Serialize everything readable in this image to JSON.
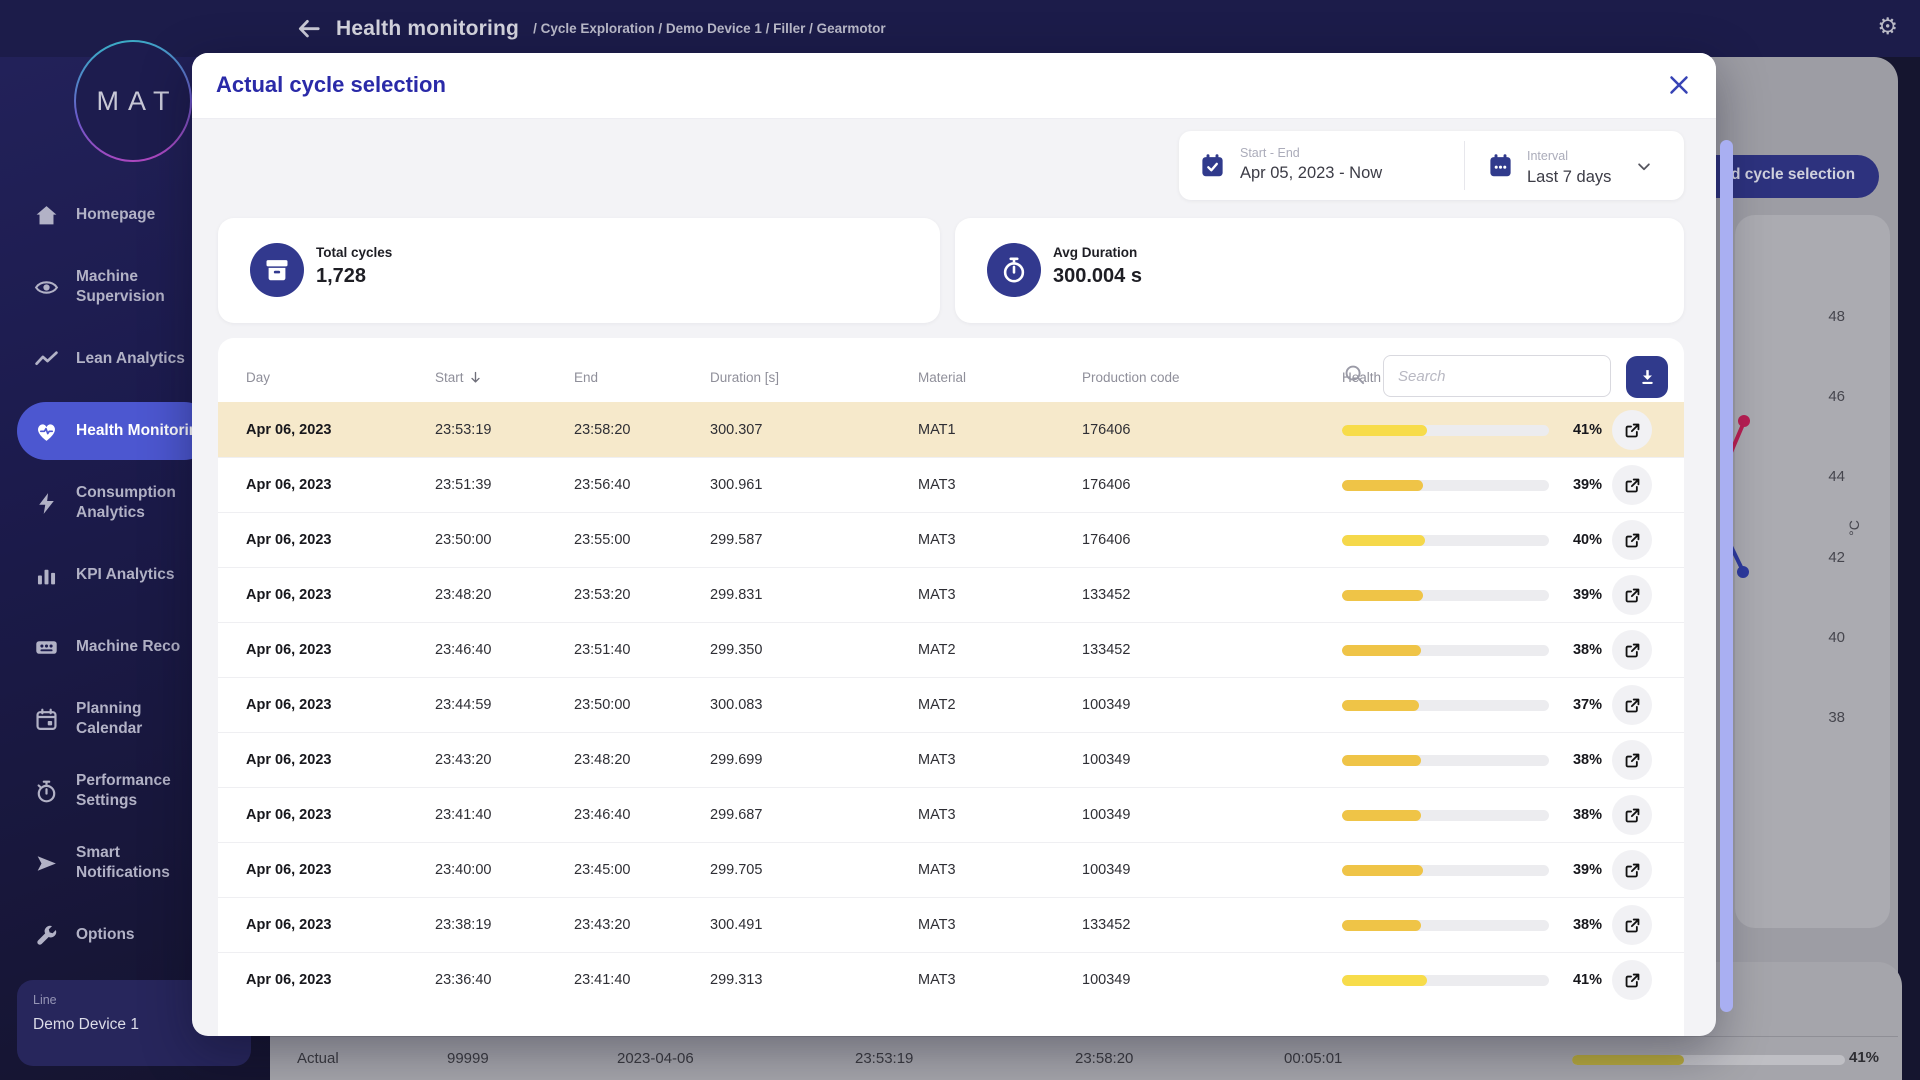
{
  "header": {
    "title": "Health monitoring",
    "breadcrumb": "/ Cycle Exploration  / Demo Device 1  / Filler  / Gearmotor",
    "gear_icon": "⚙"
  },
  "logo": {
    "text": "MAT"
  },
  "sidebar": {
    "items": [
      {
        "label": "Homepage",
        "icon": "home",
        "active": false
      },
      {
        "label": "Machine\nSupervision",
        "icon": "eye",
        "active": false
      },
      {
        "label": "Lean Analytics",
        "icon": "trend",
        "active": false
      },
      {
        "label": "Health Monitoring",
        "icon": "heart",
        "active": true
      },
      {
        "label": "Consumption\nAnalytics",
        "icon": "bolt",
        "active": false
      },
      {
        "label": "KPI Analytics",
        "icon": "bars",
        "active": false
      },
      {
        "label": "Machine Reco",
        "icon": "cassette",
        "active": false
      },
      {
        "label": "Planning\nCalendar",
        "icon": "calendar",
        "active": false
      },
      {
        "label": "Performance\nSettings",
        "icon": "stopwatch",
        "active": false
      },
      {
        "label": "Smart\nNotifications",
        "icon": "send",
        "active": false
      },
      {
        "label": "Options",
        "icon": "wrench",
        "active": false
      }
    ],
    "line_panel": {
      "label": "Line",
      "value": "Demo Device 1"
    }
  },
  "background": {
    "guided_button_label": "d cycle selection",
    "axis_ticks": [
      "48",
      "46",
      "44",
      "42",
      "40",
      "38"
    ],
    "axis_unit": "°C",
    "bottom_row": {
      "name": "Actual",
      "count": "99999",
      "date": "2023-04-06",
      "start": "23:53:19",
      "end": "23:58:20",
      "duration": "00:05:01",
      "health": 41,
      "health_label": "41%",
      "bar_color": "#b5a83e"
    }
  },
  "modal": {
    "title": "Actual cycle selection",
    "date_range": {
      "label": "Start - End",
      "value": "Apr 05, 2023 - Now"
    },
    "interval": {
      "label": "Interval",
      "value": "Last 7 days"
    },
    "stats": [
      {
        "label": "Total cycles",
        "value": "1,728",
        "icon": "archive"
      },
      {
        "label": "Avg Duration",
        "value": "300.004 s",
        "icon": "timer"
      }
    ],
    "search": {
      "placeholder": "Search"
    },
    "table": {
      "col_day": "Day",
      "col_start": "Start",
      "col_end": "End",
      "col_duration": "Duration [s]",
      "col_material": "Material",
      "col_code": "Production code",
      "col_health": "Health",
      "rows": [
        {
          "day": "Apr 06, 2023",
          "start": "23:53:19",
          "end": "23:58:20",
          "duration": "300.307",
          "material": "MAT1",
          "code": "176406",
          "health": 41,
          "health_label": "41%",
          "bar_color": "#f7dc4a",
          "highlight": true
        },
        {
          "day": "Apr 06, 2023",
          "start": "23:51:39",
          "end": "23:56:40",
          "duration": "300.961",
          "material": "MAT3",
          "code": "176406",
          "health": 39,
          "health_label": "39%",
          "bar_color": "#efc447",
          "highlight": false
        },
        {
          "day": "Apr 06, 2023",
          "start": "23:50:00",
          "end": "23:55:00",
          "duration": "299.587",
          "material": "MAT3",
          "code": "176406",
          "health": 40,
          "health_label": "40%",
          "bar_color": "#f5d84a",
          "highlight": false
        },
        {
          "day": "Apr 06, 2023",
          "start": "23:48:20",
          "end": "23:53:20",
          "duration": "299.831",
          "material": "MAT3",
          "code": "133452",
          "health": 39,
          "health_label": "39%",
          "bar_color": "#efc447",
          "highlight": false
        },
        {
          "day": "Apr 06, 2023",
          "start": "23:46:40",
          "end": "23:51:40",
          "duration": "299.350",
          "material": "MAT2",
          "code": "133452",
          "health": 38,
          "health_label": "38%",
          "bar_color": "#efc447",
          "highlight": false
        },
        {
          "day": "Apr 06, 2023",
          "start": "23:44:59",
          "end": "23:50:00",
          "duration": "300.083",
          "material": "MAT2",
          "code": "100349",
          "health": 37,
          "health_label": "37%",
          "bar_color": "#efc447",
          "highlight": false
        },
        {
          "day": "Apr 06, 2023",
          "start": "23:43:20",
          "end": "23:48:20",
          "duration": "299.699",
          "material": "MAT3",
          "code": "100349",
          "health": 38,
          "health_label": "38%",
          "bar_color": "#efc447",
          "highlight": false
        },
        {
          "day": "Apr 06, 2023",
          "start": "23:41:40",
          "end": "23:46:40",
          "duration": "299.687",
          "material": "MAT3",
          "code": "100349",
          "health": 38,
          "health_label": "38%",
          "bar_color": "#efc447",
          "highlight": false
        },
        {
          "day": "Apr 06, 2023",
          "start": "23:40:00",
          "end": "23:45:00",
          "duration": "299.705",
          "material": "MAT3",
          "code": "100349",
          "health": 39,
          "health_label": "39%",
          "bar_color": "#efc447",
          "highlight": false
        },
        {
          "day": "Apr 06, 2023",
          "start": "23:38:19",
          "end": "23:43:20",
          "duration": "300.491",
          "material": "MAT3",
          "code": "133452",
          "health": 38,
          "health_label": "38%",
          "bar_color": "#efc447",
          "highlight": false
        },
        {
          "day": "Apr 06, 2023",
          "start": "23:36:40",
          "end": "23:41:40",
          "duration": "299.313",
          "material": "MAT3",
          "code": "100349",
          "health": 41,
          "health_label": "41%",
          "bar_color": "#f7dc4a",
          "highlight": false
        }
      ]
    }
  },
  "colors": {
    "accent_pill": "#4c57d0",
    "icon_navy": "#303a8c",
    "modal_title": "#2a2aa8",
    "highlight_row": "#f6e9cb",
    "scrollbar": "#a9aff2"
  }
}
